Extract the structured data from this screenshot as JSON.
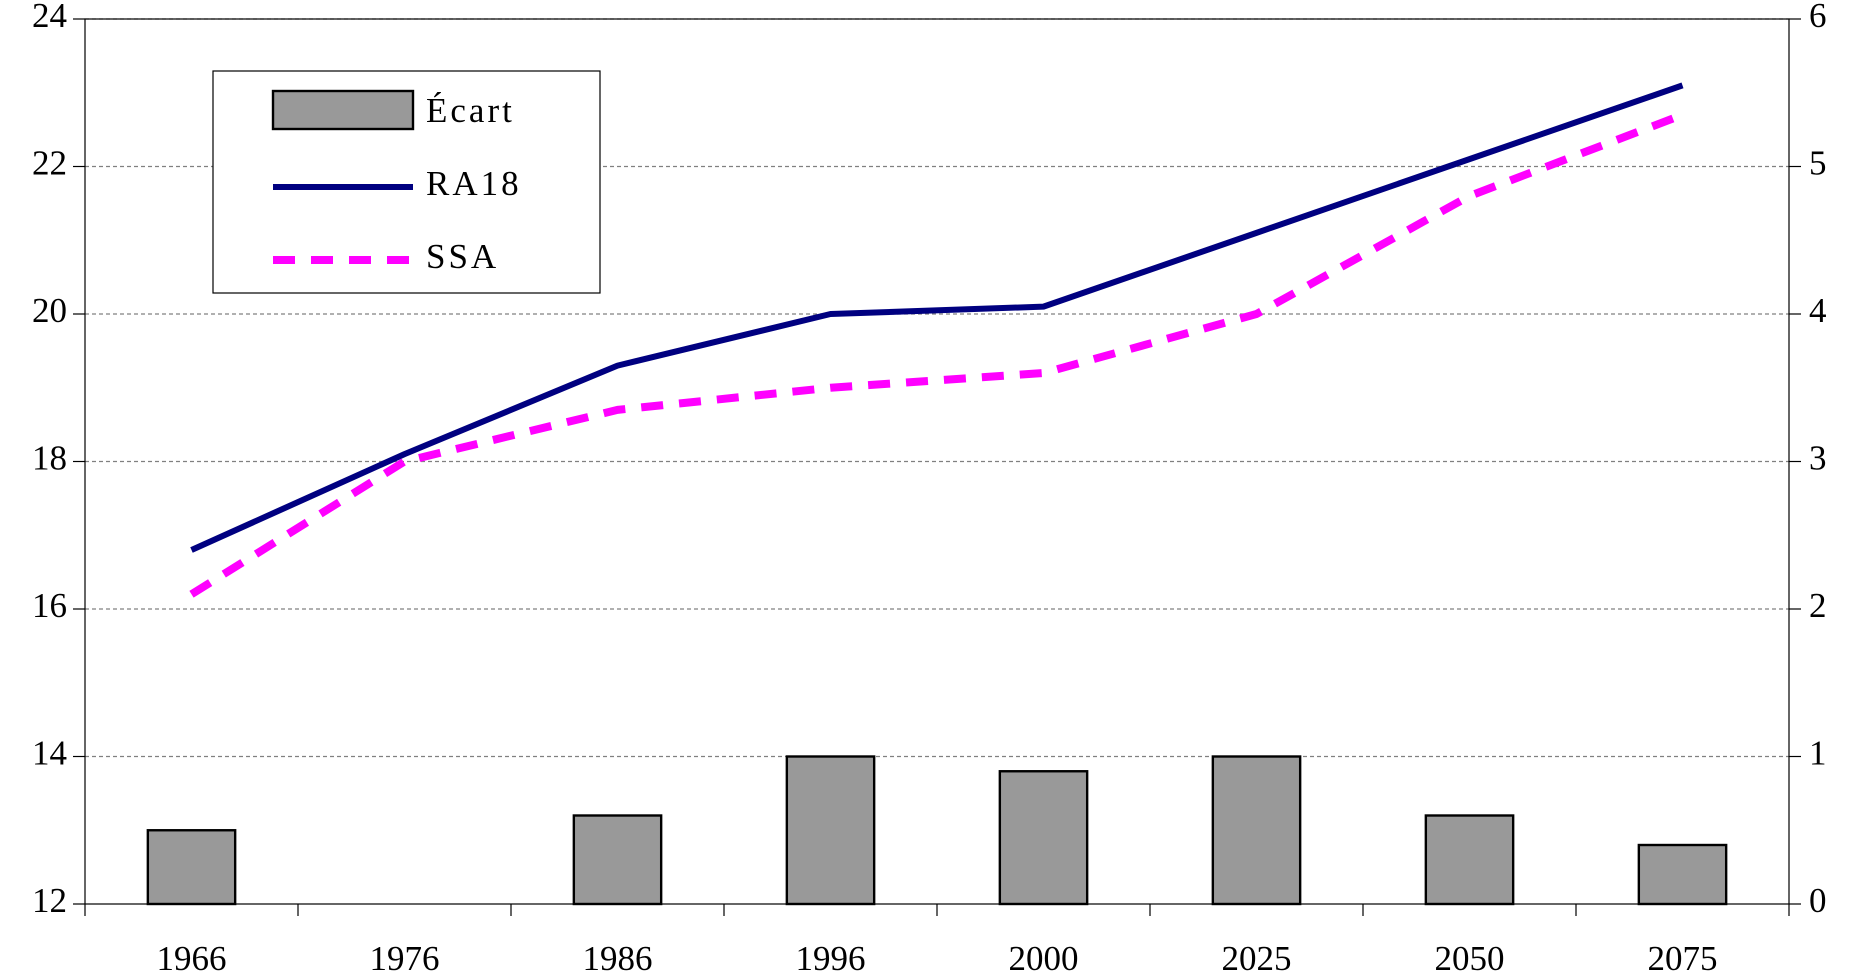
{
  "chart_data": {
    "type": "bar-line",
    "categories": [
      "1966",
      "1976",
      "1986",
      "1996",
      "2000",
      "2025",
      "2050",
      "2075"
    ],
    "series": [
      {
        "name": "Écart",
        "type": "bar",
        "axis": "y2",
        "color": "#999999",
        "values": [
          0.5,
          0,
          0.6,
          1.0,
          0.9,
          1.0,
          0.6,
          0.4
        ]
      },
      {
        "name": "RA18",
        "type": "line",
        "color": "#000080",
        "values": [
          16.8,
          18.1,
          19.3,
          20.0,
          20.1,
          21.1,
          22.1,
          23.1
        ]
      },
      {
        "name": "SSA",
        "type": "line",
        "dashed": true,
        "color": "#ff00ff",
        "values": [
          16.2,
          18.0,
          18.7,
          19.0,
          19.2,
          20.0,
          21.6,
          22.7
        ]
      }
    ],
    "ylim": [
      12,
      24
    ],
    "yticks": [
      12,
      14,
      16,
      18,
      20,
      22,
      24
    ],
    "y2lim": [
      0,
      6
    ],
    "y2ticks": [
      0,
      1,
      2,
      3,
      4,
      5,
      6
    ],
    "grid": true,
    "legend": "top-left"
  }
}
